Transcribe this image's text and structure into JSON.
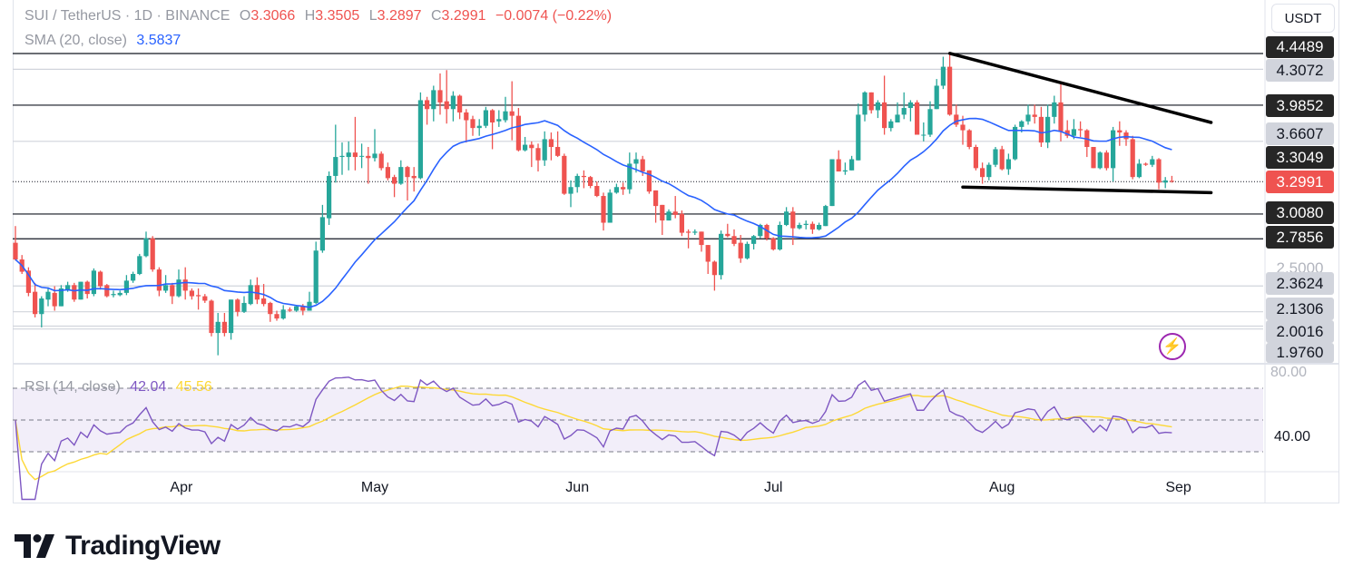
{
  "header": {
    "symbol": "SUI / TetherUS · 1D · BINANCE",
    "open_label": "O",
    "open": "3.3066",
    "high_label": "H",
    "high": "3.3505",
    "low_label": "L",
    "low": "3.2897",
    "close_label": "C",
    "close": "3.2991",
    "change": "−0.0074 (−0.22%)"
  },
  "sma_legend": {
    "label": "SMA (20, close)",
    "value": "3.5837"
  },
  "rsi_legend": {
    "label": "RSI (14, close)",
    "value": "42.04",
    "ma_value": "45.56"
  },
  "currency_button": "USDT",
  "price_axis": {
    "labels": [
      {
        "text": "4.4489",
        "style": "dark"
      },
      {
        "text": "4.3072",
        "style": "gray"
      },
      {
        "text": "3.9852",
        "style": "dark"
      },
      {
        "text": "3.6607",
        "style": "gray"
      },
      {
        "text": "3.3049",
        "style": "dark"
      },
      {
        "text": "3.2991",
        "style": "red"
      },
      {
        "text": "3.0080",
        "style": "dark"
      },
      {
        "text": "2.7856",
        "style": "dark"
      },
      {
        "text": "2.5000",
        "style": "plain"
      },
      {
        "text": "2.3624",
        "style": "gray"
      },
      {
        "text": "2.1306",
        "style": "gray"
      },
      {
        "text": "2.0016",
        "style": "gray"
      },
      {
        "text": "1.9760",
        "style": "gray"
      }
    ]
  },
  "rsi_axis": {
    "labels": [
      "80.00",
      "40.00"
    ]
  },
  "time_axis": {
    "labels": [
      "Apr",
      "May",
      "Jun",
      "Jul",
      "Aug",
      "Sep"
    ]
  },
  "brand": {
    "name": "TradingView"
  },
  "icons": {
    "alert": "lightning-icon",
    "logo": "tradingview-logo-icon"
  },
  "chart_data": {
    "type": "candlestick",
    "title": "SUI / TetherUS · 1D · BINANCE",
    "x_tick_labels": [
      "Apr",
      "May",
      "Jun",
      "Jul",
      "Aug",
      "Sep"
    ],
    "ylim": [
      1.75,
      4.5
    ],
    "y_scale": "linear",
    "grid": false,
    "colors": {
      "up": "#26a69a",
      "down": "#ef5350",
      "sma": "#2962ff",
      "rsi": "#7e57c2",
      "rsi_ma": "#fdd835",
      "rsi_band": "#7e57c2",
      "trendline": "#000000",
      "level": "#131722",
      "level_gray": "#d1d4dc"
    },
    "candles_ohlc": [
      [
        2.75,
        2.9,
        2.59,
        2.6
      ],
      [
        2.6,
        2.64,
        2.47,
        2.49
      ],
      [
        2.5,
        2.53,
        2.27,
        2.3
      ],
      [
        2.31,
        2.39,
        2.08,
        2.11
      ],
      [
        2.11,
        2.27,
        1.99,
        2.25
      ],
      [
        2.24,
        2.35,
        2.18,
        2.31
      ],
      [
        2.3,
        2.36,
        2.14,
        2.18
      ],
      [
        2.18,
        2.37,
        2.18,
        2.34
      ],
      [
        2.33,
        2.4,
        2.31,
        2.37
      ],
      [
        2.37,
        2.39,
        2.22,
        2.24
      ],
      [
        2.24,
        2.4,
        2.24,
        2.4
      ],
      [
        2.4,
        2.41,
        2.25,
        2.29
      ],
      [
        2.29,
        2.52,
        2.27,
        2.5
      ],
      [
        2.49,
        2.5,
        2.33,
        2.36
      ],
      [
        2.37,
        2.38,
        2.26,
        2.27
      ],
      [
        2.28,
        2.32,
        2.26,
        2.29
      ],
      [
        2.28,
        2.32,
        2.27,
        2.3
      ],
      [
        2.3,
        2.46,
        2.28,
        2.41
      ],
      [
        2.41,
        2.49,
        2.39,
        2.47
      ],
      [
        2.47,
        2.65,
        2.46,
        2.63
      ],
      [
        2.63,
        2.85,
        2.62,
        2.79
      ],
      [
        2.79,
        2.81,
        2.49,
        2.51
      ],
      [
        2.51,
        2.53,
        2.27,
        2.32
      ],
      [
        2.32,
        2.46,
        2.3,
        2.37
      ],
      [
        2.37,
        2.39,
        2.2,
        2.27
      ],
      [
        2.27,
        2.51,
        2.26,
        2.42
      ],
      [
        2.42,
        2.53,
        2.24,
        2.32
      ],
      [
        2.32,
        2.34,
        2.24,
        2.27
      ],
      [
        2.28,
        2.34,
        2.15,
        2.27
      ],
      [
        2.27,
        2.29,
        2.21,
        2.23
      ],
      [
        2.23,
        2.24,
        1.91,
        1.94
      ],
      [
        1.94,
        2.12,
        1.74,
        2.04
      ],
      [
        2.04,
        2.12,
        1.91,
        1.94
      ],
      [
        1.94,
        2.24,
        1.88,
        2.24
      ],
      [
        2.24,
        2.25,
        2.09,
        2.13
      ],
      [
        2.13,
        2.27,
        2.12,
        2.21
      ],
      [
        2.2,
        2.42,
        2.19,
        2.37
      ],
      [
        2.37,
        2.44,
        2.2,
        2.24
      ],
      [
        2.25,
        2.38,
        2.18,
        2.2
      ],
      [
        2.21,
        2.22,
        2.04,
        2.11
      ],
      [
        2.11,
        2.14,
        2.05,
        2.07
      ],
      [
        2.07,
        2.19,
        2.06,
        2.15
      ],
      [
        2.15,
        2.17,
        2.13,
        2.14
      ],
      [
        2.14,
        2.19,
        2.13,
        2.18
      ],
      [
        2.18,
        2.2,
        2.1,
        2.14
      ],
      [
        2.14,
        2.31,
        2.14,
        2.22
      ],
      [
        2.21,
        2.76,
        2.2,
        2.68
      ],
      [
        2.68,
        3.09,
        2.66,
        2.98
      ],
      [
        2.97,
        3.39,
        2.91,
        3.35
      ],
      [
        3.35,
        3.81,
        3.29,
        3.52
      ],
      [
        3.52,
        3.65,
        3.36,
        3.53
      ],
      [
        3.52,
        3.66,
        3.4,
        3.56
      ],
      [
        3.56,
        3.88,
        3.4,
        3.52
      ],
      [
        3.53,
        3.64,
        3.42,
        3.53
      ],
      [
        3.53,
        3.61,
        3.28,
        3.51
      ],
      [
        3.51,
        3.77,
        3.48,
        3.55
      ],
      [
        3.55,
        3.57,
        3.4,
        3.42
      ],
      [
        3.43,
        3.47,
        3.31,
        3.33
      ],
      [
        3.34,
        3.36,
        3.16,
        3.28
      ],
      [
        3.28,
        3.49,
        3.27,
        3.43
      ],
      [
        3.43,
        3.44,
        3.13,
        3.34
      ],
      [
        3.35,
        3.43,
        3.21,
        3.33
      ],
      [
        3.33,
        4.1,
        3.32,
        4.03
      ],
      [
        4.03,
        4.06,
        3.81,
        3.95
      ],
      [
        3.95,
        4.16,
        3.84,
        4.12
      ],
      [
        4.12,
        4.27,
        3.9,
        4.01
      ],
      [
        4.02,
        4.3,
        3.82,
        3.95
      ],
      [
        3.95,
        4.11,
        3.84,
        4.07
      ],
      [
        4.07,
        4.08,
        3.86,
        3.92
      ],
      [
        3.92,
        3.95,
        3.65,
        3.85
      ],
      [
        3.86,
        3.89,
        3.71,
        3.78
      ],
      [
        3.78,
        3.86,
        3.71,
        3.8
      ],
      [
        3.8,
        3.97,
        3.78,
        3.94
      ],
      [
        3.94,
        3.95,
        3.59,
        3.83
      ],
      [
        3.84,
        3.94,
        3.79,
        3.86
      ],
      [
        3.85,
        4.06,
        3.83,
        3.93
      ],
      [
        3.93,
        4.2,
        3.67,
        3.89
      ],
      [
        3.89,
        3.96,
        3.57,
        3.58
      ],
      [
        3.58,
        3.7,
        3.57,
        3.63
      ],
      [
        3.63,
        3.66,
        3.43,
        3.6
      ],
      [
        3.6,
        3.64,
        3.39,
        3.49
      ],
      [
        3.49,
        3.75,
        3.44,
        3.68
      ],
      [
        3.68,
        3.74,
        3.49,
        3.61
      ],
      [
        3.61,
        3.75,
        3.52,
        3.53
      ],
      [
        3.53,
        3.55,
        3.18,
        3.19
      ],
      [
        3.19,
        3.31,
        3.07,
        3.25
      ],
      [
        3.25,
        3.37,
        3.2,
        3.35
      ],
      [
        3.35,
        3.4,
        3.24,
        3.34
      ],
      [
        3.34,
        3.35,
        3.24,
        3.26
      ],
      [
        3.26,
        3.3,
        3.16,
        3.17
      ],
      [
        3.17,
        3.2,
        2.86,
        2.93
      ],
      [
        2.93,
        3.23,
        2.93,
        3.2
      ],
      [
        3.2,
        3.28,
        3.19,
        3.25
      ],
      [
        3.25,
        3.29,
        3.18,
        3.23
      ],
      [
        3.23,
        3.56,
        3.19,
        3.46
      ],
      [
        3.46,
        3.56,
        3.38,
        3.5
      ],
      [
        3.5,
        3.53,
        3.35,
        3.39
      ],
      [
        3.4,
        3.4,
        3.19,
        3.21
      ],
      [
        3.22,
        3.22,
        2.93,
        3.08
      ],
      [
        3.09,
        3.09,
        2.82,
        2.95
      ],
      [
        2.95,
        3.05,
        2.95,
        3.03
      ],
      [
        3.03,
        3.17,
        2.97,
        3.0
      ],
      [
        3.01,
        3.04,
        2.81,
        2.84
      ],
      [
        2.85,
        2.87,
        2.7,
        2.84
      ],
      [
        2.84,
        2.87,
        2.82,
        2.85
      ],
      [
        2.85,
        2.85,
        2.67,
        2.73
      ],
      [
        2.73,
        2.73,
        2.47,
        2.58
      ],
      [
        2.58,
        2.59,
        2.32,
        2.46
      ],
      [
        2.46,
        2.86,
        2.42,
        2.83
      ],
      [
        2.83,
        2.92,
        2.8,
        2.81
      ],
      [
        2.81,
        2.87,
        2.72,
        2.74
      ],
      [
        2.75,
        2.82,
        2.57,
        2.61
      ],
      [
        2.61,
        2.76,
        2.6,
        2.74
      ],
      [
        2.74,
        2.82,
        2.69,
        2.81
      ],
      [
        2.81,
        2.92,
        2.79,
        2.91
      ],
      [
        2.91,
        2.92,
        2.77,
        2.79
      ],
      [
        2.79,
        2.8,
        2.68,
        2.69
      ],
      [
        2.69,
        2.94,
        2.68,
        2.91
      ],
      [
        2.91,
        3.07,
        2.9,
        3.03
      ],
      [
        3.03,
        3.07,
        2.73,
        2.88
      ],
      [
        2.88,
        2.93,
        2.87,
        2.91
      ],
      [
        2.91,
        2.95,
        2.87,
        2.92
      ],
      [
        2.92,
        2.94,
        2.83,
        2.87
      ],
      [
        2.87,
        2.93,
        2.86,
        2.91
      ],
      [
        2.9,
        3.09,
        2.9,
        3.08
      ],
      [
        3.08,
        3.5,
        3.08,
        3.5
      ],
      [
        3.5,
        3.58,
        3.39,
        3.39
      ],
      [
        3.39,
        3.47,
        3.36,
        3.4
      ],
      [
        3.4,
        3.53,
        3.4,
        3.5
      ],
      [
        3.49,
        4.0,
        3.49,
        3.9
      ],
      [
        3.9,
        4.11,
        3.84,
        4.1
      ],
      [
        4.1,
        4.1,
        3.91,
        3.94
      ],
      [
        3.94,
        4.03,
        3.87,
        4.01
      ],
      [
        4.01,
        4.25,
        3.72,
        3.78
      ],
      [
        3.78,
        3.86,
        3.75,
        3.84
      ],
      [
        3.83,
        4.01,
        3.83,
        3.9
      ],
      [
        3.9,
        4.1,
        3.86,
        3.96
      ],
      [
        3.96,
        4.03,
        3.84,
        4.01
      ],
      [
        4.01,
        4.03,
        3.72,
        3.72
      ],
      [
        3.72,
        3.83,
        3.66,
        3.72
      ],
      [
        3.72,
        4.02,
        3.7,
        3.95
      ],
      [
        3.95,
        4.22,
        3.95,
        4.16
      ],
      [
        4.16,
        4.42,
        4.13,
        4.33
      ],
      [
        4.33,
        4.45,
        3.89,
        3.9
      ],
      [
        3.9,
        3.99,
        3.79,
        3.81
      ],
      [
        3.81,
        3.89,
        3.63,
        3.76
      ],
      [
        3.76,
        3.77,
        3.59,
        3.61
      ],
      [
        3.61,
        3.63,
        3.4,
        3.42
      ],
      [
        3.42,
        3.47,
        3.28,
        3.34
      ],
      [
        3.34,
        3.47,
        3.31,
        3.45
      ],
      [
        3.45,
        3.61,
        3.43,
        3.59
      ],
      [
        3.59,
        3.62,
        3.4,
        3.41
      ],
      [
        3.41,
        3.55,
        3.36,
        3.5
      ],
      [
        3.5,
        3.81,
        3.49,
        3.79
      ],
      [
        3.79,
        3.85,
        3.74,
        3.84
      ],
      [
        3.84,
        3.99,
        3.81,
        3.9
      ],
      [
        3.9,
        3.99,
        3.82,
        3.88
      ],
      [
        3.88,
        3.97,
        3.61,
        3.65
      ],
      [
        3.65,
        3.99,
        3.6,
        3.88
      ],
      [
        3.88,
        4.07,
        3.82,
        4.01
      ],
      [
        4.01,
        4.18,
        3.66,
        3.75
      ],
      [
        3.76,
        3.85,
        3.69,
        3.71
      ],
      [
        3.71,
        3.86,
        3.68,
        3.77
      ],
      [
        3.77,
        3.84,
        3.7,
        3.76
      ],
      [
        3.76,
        3.77,
        3.52,
        3.61
      ],
      [
        3.61,
        3.61,
        3.42,
        3.42
      ],
      [
        3.42,
        3.57,
        3.41,
        3.56
      ],
      [
        3.56,
        3.58,
        3.4,
        3.42
      ],
      [
        3.42,
        3.79,
        3.3,
        3.76
      ],
      [
        3.76,
        3.84,
        3.62,
        3.74
      ],
      [
        3.74,
        3.76,
        3.62,
        3.68
      ],
      [
        3.68,
        3.71,
        3.32,
        3.34
      ],
      [
        3.34,
        3.5,
        3.33,
        3.46
      ],
      [
        3.46,
        3.47,
        3.44,
        3.45
      ],
      [
        3.45,
        3.53,
        3.43,
        3.5
      ],
      [
        3.5,
        3.51,
        3.23,
        3.29
      ],
      [
        3.29,
        3.34,
        3.24,
        3.31
      ],
      [
        3.3066,
        3.3505,
        3.2897,
        3.2991
      ]
    ],
    "sma_period": 20,
    "rsi_period": 14,
    "rsi_ma_period": 14,
    "rsi_levels": [
      70,
      50,
      30
    ],
    "rsi_ylim": [
      20,
      90
    ],
    "levels_black": [
      4.4489,
      3.9852,
      3.008,
      2.7856
    ],
    "levels_gray": [
      4.3072,
      3.6607,
      2.3624,
      2.1306,
      2.0016,
      1.976
    ],
    "last_price": 3.2991,
    "trendlines": [
      {
        "from": [
          143,
          4.45
        ],
        "to": [
          183,
          3.83
        ]
      },
      {
        "from": [
          145,
          3.25
        ],
        "to": [
          183,
          3.2
        ]
      }
    ]
  }
}
